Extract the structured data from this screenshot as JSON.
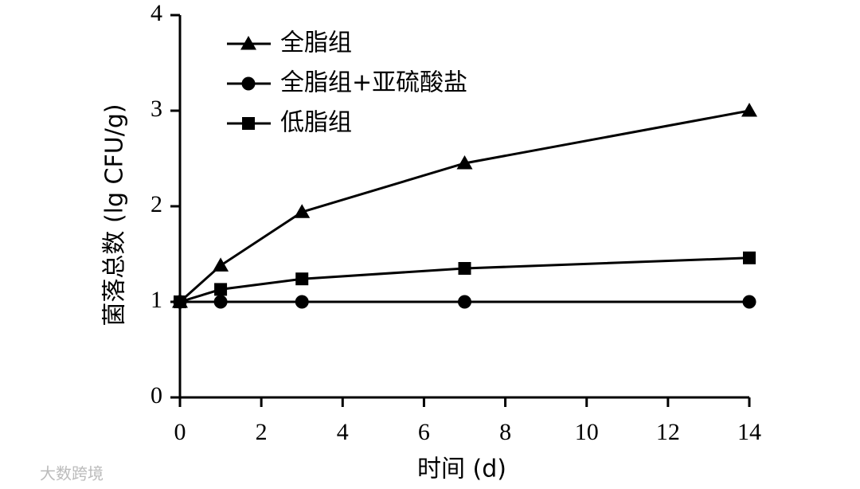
{
  "chart_data": {
    "type": "line",
    "xlabel": "时间 (d)",
    "ylabel": "菌落总数 (lg CFU/g)",
    "xlim": [
      0,
      14
    ],
    "xticks": [
      0,
      2,
      4,
      6,
      8,
      10,
      12,
      14
    ],
    "ylim": [
      0,
      4
    ],
    "yticks": [
      0,
      1,
      2,
      3,
      4
    ],
    "legend": "upper left",
    "series": [
      {
        "name": "全脂组",
        "color": "#000000",
        "marker": "triangle",
        "x": [
          0,
          1,
          3,
          7,
          14
        ],
        "values": [
          1,
          1.38,
          1.94,
          2.45,
          3.0
        ]
      },
      {
        "name": "全脂组+亚硫酸盐",
        "color": "#000000",
        "marker": "circle",
        "x": [
          0,
          1,
          3,
          7,
          14
        ],
        "values": [
          1,
          1,
          1,
          1,
          1
        ]
      },
      {
        "name": "低脂组",
        "color": "#000000",
        "marker": "square",
        "x": [
          0,
          1,
          3,
          7,
          14
        ],
        "values": [
          1,
          1.13,
          1.24,
          1.35,
          1.46
        ]
      }
    ]
  },
  "watermark": "大数跨境"
}
